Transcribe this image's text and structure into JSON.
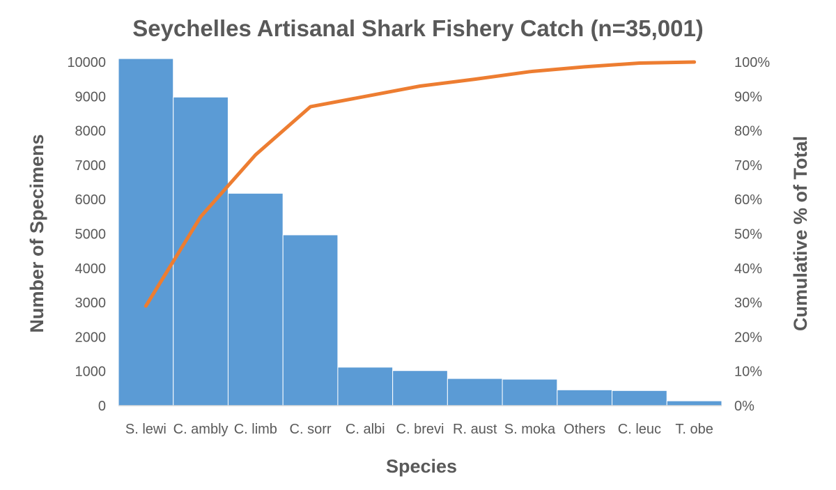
{
  "chart_data": {
    "type": "bar",
    "title": "Seychelles Artisanal Shark Fishery Catch (n=35,001)",
    "xlabel": "Species",
    "ylabel": "Number of Specimens",
    "y2label": "Cumulative % of Total",
    "ylim": [
      0,
      10000
    ],
    "y2lim": [
      0,
      100
    ],
    "yticks": [
      "0",
      "1000",
      "2000",
      "3000",
      "4000",
      "5000",
      "6000",
      "7000",
      "8000",
      "9000",
      "10000"
    ],
    "y2ticks": [
      "0%",
      "10%",
      "20%",
      "30%",
      "40%",
      "50%",
      "60%",
      "70%",
      "80%",
      "90%",
      "100%"
    ],
    "categories": [
      "S. lewi",
      "C. ambly",
      "C. limb",
      "C. sorr",
      "C. albi",
      "C. brevi",
      "R. aust",
      "S. moka",
      "Others",
      "C. leuc",
      "T. obe"
    ],
    "series": [
      {
        "name": "Number of Specimens",
        "type": "bar",
        "axis": "left",
        "color": "#5B9BD5",
        "values": [
          10100,
          8980,
          6180,
          4970,
          1120,
          1020,
          790,
          770,
          460,
          440,
          140
        ]
      },
      {
        "name": "Cumulative % of Total",
        "type": "line",
        "axis": "right",
        "color": "#ED7D31",
        "values": [
          29,
          55,
          73,
          87,
          90,
          93,
          95,
          97.2,
          98.6,
          99.7,
          100
        ]
      }
    ],
    "grid": false,
    "legend": "none"
  }
}
